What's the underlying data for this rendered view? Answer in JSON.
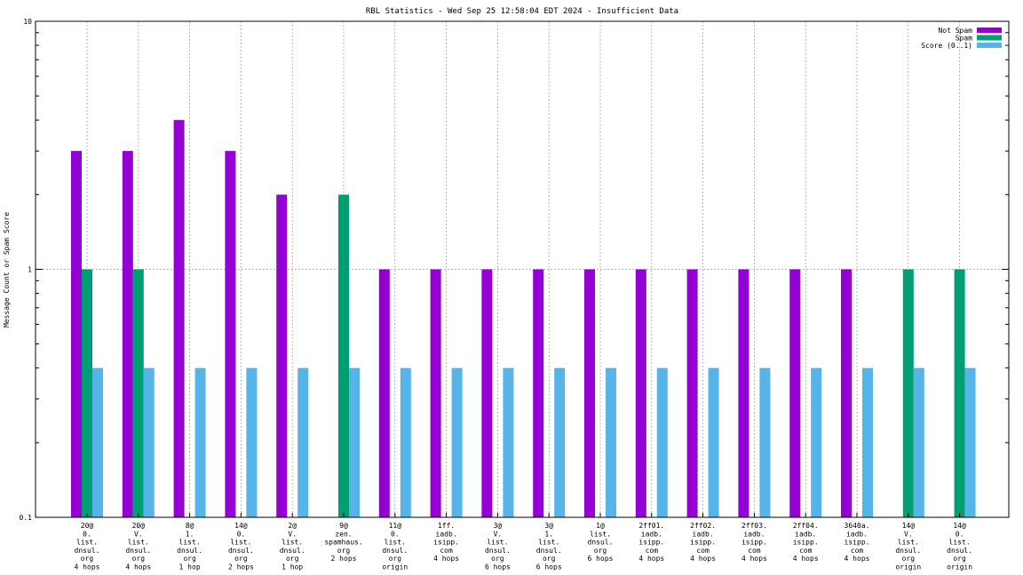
{
  "chart_data": {
    "type": "bar",
    "title": "RBL Statistics - Wed Sep 25 12:58:04 EDT 2024 - Insufficient Data",
    "ylabel": "Message Count or Spam Score",
    "xlabel": "",
    "y_scale": "log",
    "ylim": [
      0.1,
      10
    ],
    "y_ticks": [
      {
        "value": 0.1,
        "label": "0.1"
      },
      {
        "value": 1,
        "label": "1"
      },
      {
        "value": 10,
        "label": "10"
      }
    ],
    "grid": true,
    "legend_position": "top-right",
    "categories": [
      [
        "20@",
        "0.",
        "list.",
        "dnsul.",
        "org",
        "4 hops"
      ],
      [
        "20@",
        "V.",
        "list.",
        "dnsul.",
        "org",
        "4 hops"
      ],
      [
        "8@",
        "1.",
        "list.",
        "dnsul.",
        "org",
        "1 hop"
      ],
      [
        "14@",
        "0.",
        "list.",
        "dnsul.",
        "org",
        "2 hops"
      ],
      [
        "2@",
        "V.",
        "list.",
        "dnsul.",
        "org",
        "1 hop"
      ],
      [
        "9@",
        "zen.",
        "spamhaus.",
        "org",
        "2 hops"
      ],
      [
        "11@",
        "0.",
        "list.",
        "dnsul.",
        "org",
        "origin"
      ],
      [
        "1ff.",
        "iadb.",
        "isipp.",
        "com",
        "4 hops"
      ],
      [
        "3@",
        "V.",
        "list.",
        "dnsul.",
        "org",
        "6 hops"
      ],
      [
        "3@",
        "1.",
        "list.",
        "dnsul.",
        "org",
        "6 hops"
      ],
      [
        "1@",
        "list.",
        "dnsul.",
        "org",
        "6 hops"
      ],
      [
        "2ff01.",
        "iadb.",
        "isipp.",
        "com",
        "4 hops"
      ],
      [
        "2ff02.",
        "iadb.",
        "isipp.",
        "com",
        "4 hops"
      ],
      [
        "2ff03.",
        "iadb.",
        "isipp.",
        "com",
        "4 hops"
      ],
      [
        "2ff04.",
        "iadb.",
        "isipp.",
        "com",
        "4 hops"
      ],
      [
        "3640a.",
        "iadb.",
        "isipp.",
        "com",
        "4 hops"
      ],
      [
        "14@",
        "V.",
        "list.",
        "dnsul.",
        "org",
        "origin"
      ],
      [
        "14@",
        "0.",
        "list.",
        "dnsul.",
        "org",
        "origin"
      ]
    ],
    "series": [
      {
        "name": "Not Spam",
        "color": "#9400d3",
        "values": [
          3,
          3,
          4,
          3,
          2,
          null,
          1,
          1,
          1,
          1,
          1,
          1,
          1,
          1,
          1,
          1,
          null,
          null
        ]
      },
      {
        "name": "Spam",
        "color": "#009e73",
        "values": [
          1,
          1,
          null,
          null,
          null,
          2,
          null,
          null,
          null,
          null,
          null,
          null,
          null,
          null,
          null,
          null,
          1,
          1
        ]
      },
      {
        "name": "Score (0..1)",
        "color": "#56b4e9",
        "values": [
          0.4,
          0.4,
          0.4,
          0.4,
          0.4,
          0.4,
          0.4,
          0.4,
          0.4,
          0.4,
          0.4,
          0.4,
          0.4,
          0.4,
          0.4,
          0.4,
          0.4,
          0.4
        ]
      }
    ]
  }
}
